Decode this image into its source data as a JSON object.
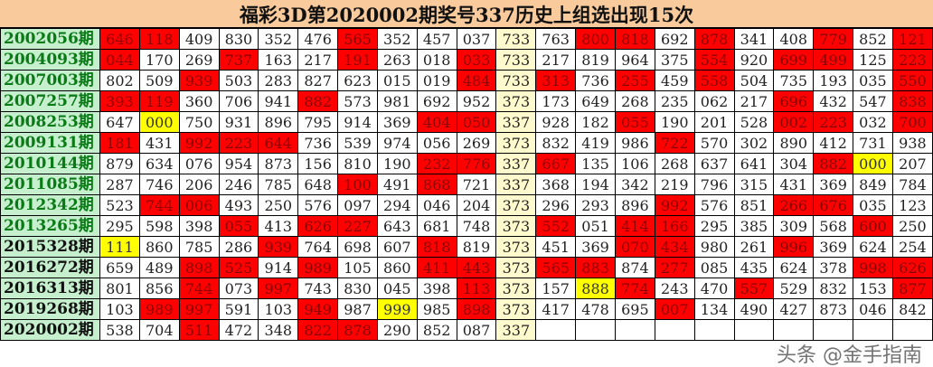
{
  "title": "福彩3D第2020002期奖号337历史上组选出现15次",
  "watermark": "头条 @金手指南",
  "colors": {
    "hit": "#ff0000",
    "special": "#ffff00",
    "match_column": "#fffacd",
    "label_bg": "#c6efce",
    "header_bg": "#f9cb9c"
  },
  "mark_legend": {
    "r": "red",
    "y": "yellow",
    "p": "pale-yellow",
    ".": "white"
  },
  "rows": [
    {
      "label": "2002056期",
      "label_color": "green",
      "cells": [
        "646",
        "118",
        "409",
        "830",
        "352",
        "476",
        "565",
        "352",
        "457",
        "037",
        "733",
        "763",
        "800",
        "818",
        "692",
        "878",
        "341",
        "408",
        "779",
        "852",
        "121"
      ],
      "marks": "rr....r...p.rr.r..r.r"
    },
    {
      "label": "2004093期",
      "label_color": "green",
      "cells": [
        "044",
        "170",
        "269",
        "737",
        "163",
        "217",
        "191",
        "263",
        "018",
        "033",
        "733",
        "217",
        "819",
        "964",
        "375",
        "554",
        "920",
        "699",
        "499",
        "125",
        "223"
      ],
      "marks": "r..r..r..rp....r.rr.r"
    },
    {
      "label": "2007003期",
      "label_color": "green",
      "cells": [
        "802",
        "509",
        "939",
        "503",
        "283",
        "827",
        "623",
        "015",
        "019",
        "484",
        "733",
        "313",
        "736",
        "255",
        "459",
        "558",
        "504",
        "735",
        "193",
        "035",
        "550"
      ],
      "marks": "..r......rpr.r.r....r"
    },
    {
      "label": "2007257期",
      "label_color": "green",
      "cells": [
        "393",
        "119",
        "360",
        "706",
        "941",
        "882",
        "573",
        "981",
        "692",
        "952",
        "373",
        "173",
        "649",
        "268",
        "235",
        "062",
        "217",
        "696",
        "432",
        "547",
        "838"
      ],
      "marks": "rr...r....p......r..r"
    },
    {
      "label": "2008253期",
      "label_color": "green",
      "cells": [
        "647",
        "000",
        "750",
        "931",
        "896",
        "795",
        "914",
        "369",
        "404",
        "050",
        "337",
        "928",
        "182",
        "055",
        "190",
        "201",
        "528",
        "002",
        "223",
        "032",
        "700"
      ],
      "marks": ".y......rrp..r...rr.r"
    },
    {
      "label": "2009131期",
      "label_color": "green",
      "cells": [
        "181",
        "431",
        "992",
        "223",
        "644",
        "736",
        "539",
        "974",
        "056",
        "269",
        "373",
        "832",
        "419",
        "986",
        "722",
        "570",
        "302",
        "890",
        "412",
        "731",
        "938"
      ],
      "marks": "r.rrr.....p...r......"
    },
    {
      "label": "2010144期",
      "label_color": "green",
      "cells": [
        "879",
        "634",
        "076",
        "954",
        "873",
        "156",
        "810",
        "190",
        "232",
        "776",
        "337",
        "667",
        "135",
        "106",
        "268",
        "637",
        "641",
        "304",
        "882",
        "000",
        "207"
      ],
      "marks": "........rrpr......ry."
    },
    {
      "label": "2011085期",
      "label_color": "green",
      "cells": [
        "287",
        "746",
        "206",
        "246",
        "785",
        "648",
        "100",
        "491",
        "868",
        "721",
        "337",
        "368",
        "194",
        "342",
        "219",
        "796",
        "315",
        "431",
        "369",
        "849",
        "784"
      ],
      "marks": "......r.r.p.........."
    },
    {
      "label": "2012342期",
      "label_color": "green",
      "cells": [
        "523",
        "744",
        "006",
        "493",
        "250",
        "576",
        "097",
        "294",
        "046",
        "204",
        "373",
        "296",
        "293",
        "896",
        "992",
        "576",
        "851",
        "266",
        "676",
        "035",
        "123"
      ],
      "marks": ".rr.......p...r..rr.."
    },
    {
      "label": "2013265期",
      "label_color": "green",
      "cells": [
        "295",
        "598",
        "398",
        "055",
        "413",
        "626",
        "227",
        "643",
        "681",
        "748",
        "373",
        "552",
        "051",
        "414",
        "166",
        "295",
        "385",
        "309",
        "568",
        "600",
        "250"
      ],
      "marks": "...r.rr...pr.rr....r."
    },
    {
      "label": "2015328期",
      "label_color": "black",
      "cells": [
        "111",
        "860",
        "785",
        "286",
        "939",
        "764",
        "698",
        "607",
        "818",
        "819",
        "373",
        "451",
        "369",
        "070",
        "434",
        "980",
        "261",
        "996",
        "369",
        "624",
        "254"
      ],
      "marks": "y...r...r.p..rr..r..."
    },
    {
      "label": "2016272期",
      "label_color": "black",
      "cells": [
        "659",
        "489",
        "898",
        "525",
        "914",
        "989",
        "105",
        "860",
        "411",
        "443",
        "373",
        "565",
        "883",
        "874",
        "277",
        "085",
        "435",
        "624",
        "378",
        "998",
        "626"
      ],
      "marks": "..rr.r..rrprr.r....rr"
    },
    {
      "label": "2016313期",
      "label_color": "black",
      "cells": [
        "801",
        "856",
        "744",
        "073",
        "997",
        "743",
        "830",
        "045",
        "398",
        "113",
        "373",
        "157",
        "888",
        "774",
        "243",
        "470",
        "557",
        "529",
        "832",
        "153",
        "877"
      ],
      "marks": "..r.r....rp.yr..r...r"
    },
    {
      "label": "2019268期",
      "label_color": "black",
      "cells": [
        "103",
        "989",
        "997",
        "591",
        "103",
        "949",
        "987",
        "999",
        "985",
        "898",
        "373",
        "417",
        "478",
        "695",
        "007",
        "134",
        "490",
        "427",
        "873",
        "046",
        "842"
      ],
      "marks": ".rr..r.y.rp...r......"
    },
    {
      "label": "2020002期",
      "label_color": "black",
      "cells": [
        "538",
        "704",
        "511",
        "472",
        "348",
        "822",
        "878",
        "290",
        "852",
        "087",
        "337",
        "",
        "",
        "",
        "",
        "",
        "",
        "",
        "",
        "",
        ""
      ],
      "marks": "..r..rr...p.........."
    }
  ]
}
